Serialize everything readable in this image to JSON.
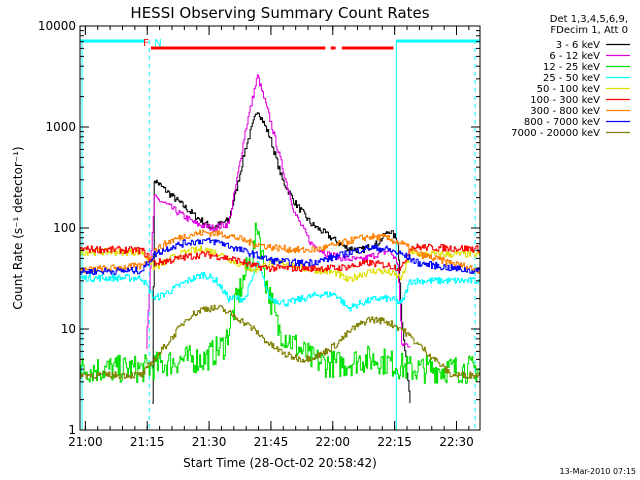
{
  "chart_data": {
    "type": "line",
    "title": "HESSI Observing Summary Count Rates",
    "xlabel": "Start Time (28-Oct-02 20:58:42)",
    "ylabel": "Count Rate (s⁻¹ detector⁻¹)",
    "x_unit": "minutes after 20:58:42",
    "xlim": [
      0,
      97
    ],
    "ylim": [
      1,
      10000
    ],
    "yscale": "log",
    "grid": false,
    "legend_position": "top-right outside",
    "x_ticks": [
      {
        "t": 1.3,
        "label": "21:00"
      },
      {
        "t": 16.3,
        "label": "21:15"
      },
      {
        "t": 31.3,
        "label": "21:30"
      },
      {
        "t": 46.3,
        "label": "21:45"
      },
      {
        "t": 61.3,
        "label": "22:00"
      },
      {
        "t": 76.3,
        "label": "22:15"
      },
      {
        "t": 91.3,
        "label": "22:30"
      }
    ],
    "y_ticks": [
      {
        "v": 1,
        "label": "1"
      },
      {
        "v": 10,
        "label": "10"
      },
      {
        "v": 100,
        "label": "100"
      },
      {
        "v": 1000,
        "label": "1000"
      },
      {
        "v": 10000,
        "label": "10000"
      }
    ],
    "legend_header": [
      "Det 1,3,4,5,6,9,",
      "FDecim 1, Att 0"
    ],
    "series": [
      {
        "name": "3 - 6 keV",
        "color": "#000000",
        "points": [
          [
            17.5,
            2
          ],
          [
            18,
            300
          ],
          [
            20,
            250
          ],
          [
            24,
            180
          ],
          [
            28,
            130
          ],
          [
            32,
            100
          ],
          [
            36,
            120
          ],
          [
            38,
            250
          ],
          [
            40,
            600
          ],
          [
            43,
            1500
          ],
          [
            46,
            800
          ],
          [
            49,
            300
          ],
          [
            52,
            180
          ],
          [
            56,
            110
          ],
          [
            60,
            85
          ],
          [
            64,
            65
          ],
          [
            68,
            60
          ],
          [
            72,
            70
          ],
          [
            75,
            95
          ],
          [
            77,
            75
          ],
          [
            78,
            12
          ],
          [
            80,
            2
          ]
        ]
      },
      {
        "name": "6 - 12 keV",
        "color": "#e000e0",
        "points": [
          [
            16,
            7
          ],
          [
            18,
            200
          ],
          [
            20,
            180
          ],
          [
            24,
            140
          ],
          [
            28,
            110
          ],
          [
            32,
            100
          ],
          [
            36,
            110
          ],
          [
            38,
            300
          ],
          [
            40,
            900
          ],
          [
            43,
            3200
          ],
          [
            46,
            1200
          ],
          [
            49,
            400
          ],
          [
            52,
            140
          ],
          [
            56,
            70
          ],
          [
            60,
            55
          ],
          [
            64,
            50
          ],
          [
            68,
            48
          ],
          [
            72,
            55
          ],
          [
            75,
            60
          ],
          [
            77,
            45
          ],
          [
            78,
            7
          ],
          [
            80,
            7
          ]
        ]
      },
      {
        "name": "12 - 25 keV",
        "color": "#00e000",
        "points": [
          [
            0,
            4
          ],
          [
            15,
            4
          ],
          [
            20,
            4.5
          ],
          [
            25,
            5
          ],
          [
            30,
            5
          ],
          [
            35,
            7
          ],
          [
            38,
            20
          ],
          [
            42,
            60
          ],
          [
            43,
            110
          ],
          [
            45,
            30
          ],
          [
            48,
            10
          ],
          [
            52,
            7
          ],
          [
            56,
            5
          ],
          [
            60,
            4.5
          ],
          [
            64,
            4.5
          ],
          [
            68,
            5
          ],
          [
            72,
            5
          ],
          [
            76,
            4.5
          ],
          [
            80,
            4
          ],
          [
            97,
            4
          ]
        ]
      },
      {
        "name": "25 - 50 keV",
        "color": "#00ffff",
        "points": [
          [
            0,
            32
          ],
          [
            15,
            32
          ],
          [
            18,
            20
          ],
          [
            22,
            24
          ],
          [
            26,
            30
          ],
          [
            30,
            35
          ],
          [
            33,
            30
          ],
          [
            36,
            20
          ],
          [
            40,
            20
          ],
          [
            43,
            45
          ],
          [
            46,
            20
          ],
          [
            50,
            18
          ],
          [
            54,
            20
          ],
          [
            58,
            22
          ],
          [
            62,
            22
          ],
          [
            65,
            16
          ],
          [
            68,
            18
          ],
          [
            72,
            20
          ],
          [
            75,
            20
          ],
          [
            78,
            18
          ],
          [
            80,
            30
          ],
          [
            97,
            30
          ]
        ]
      },
      {
        "name": "50 - 100 keV",
        "color": "#e0e000",
        "points": [
          [
            0,
            58
          ],
          [
            15,
            58
          ],
          [
            18,
            40
          ],
          [
            22,
            50
          ],
          [
            26,
            58
          ],
          [
            30,
            62
          ],
          [
            34,
            55
          ],
          [
            38,
            45
          ],
          [
            42,
            38
          ],
          [
            46,
            45
          ],
          [
            50,
            45
          ],
          [
            54,
            40
          ],
          [
            58,
            38
          ],
          [
            62,
            36
          ],
          [
            65,
            30
          ],
          [
            68,
            35
          ],
          [
            72,
            38
          ],
          [
            75,
            36
          ],
          [
            78,
            32
          ],
          [
            80,
            55
          ],
          [
            97,
            55
          ]
        ]
      },
      {
        "name": "100 - 300 keV",
        "color": "#ff0000",
        "points": [
          [
            0,
            62
          ],
          [
            15,
            60
          ],
          [
            18,
            45
          ],
          [
            22,
            48
          ],
          [
            26,
            52
          ],
          [
            30,
            55
          ],
          [
            34,
            52
          ],
          [
            38,
            48
          ],
          [
            42,
            42
          ],
          [
            46,
            40
          ],
          [
            50,
            40
          ],
          [
            54,
            40
          ],
          [
            58,
            40
          ],
          [
            62,
            40
          ],
          [
            66,
            42
          ],
          [
            70,
            45
          ],
          [
            74,
            43
          ],
          [
            78,
            40
          ],
          [
            80,
            65
          ],
          [
            97,
            62
          ]
        ]
      },
      {
        "name": "300 - 800 keV",
        "color": "#ff8000",
        "points": [
          [
            0,
            38
          ],
          [
            15,
            42
          ],
          [
            18,
            60
          ],
          [
            22,
            75
          ],
          [
            26,
            85
          ],
          [
            30,
            90
          ],
          [
            34,
            88
          ],
          [
            38,
            80
          ],
          [
            42,
            70
          ],
          [
            46,
            65
          ],
          [
            50,
            62
          ],
          [
            54,
            60
          ],
          [
            58,
            62
          ],
          [
            62,
            68
          ],
          [
            66,
            76
          ],
          [
            70,
            82
          ],
          [
            74,
            80
          ],
          [
            78,
            70
          ],
          [
            82,
            55
          ],
          [
            90,
            45
          ],
          [
            97,
            38
          ]
        ]
      },
      {
        "name": "800 - 7000 keV",
        "color": "#0000ff",
        "points": [
          [
            0,
            37
          ],
          [
            15,
            38
          ],
          [
            18,
            55
          ],
          [
            22,
            65
          ],
          [
            26,
            72
          ],
          [
            30,
            75
          ],
          [
            34,
            72
          ],
          [
            38,
            62
          ],
          [
            42,
            55
          ],
          [
            46,
            48
          ],
          [
            50,
            46
          ],
          [
            54,
            45
          ],
          [
            58,
            47
          ],
          [
            62,
            52
          ],
          [
            66,
            58
          ],
          [
            70,
            64
          ],
          [
            74,
            62
          ],
          [
            78,
            55
          ],
          [
            82,
            45
          ],
          [
            90,
            40
          ],
          [
            97,
            37
          ]
        ]
      },
      {
        "name": "7000 - 20000 keV",
        "color": "#808000",
        "points": [
          [
            0,
            3.5
          ],
          [
            15,
            3.5
          ],
          [
            18,
            5
          ],
          [
            22,
            8
          ],
          [
            26,
            13
          ],
          [
            30,
            16
          ],
          [
            34,
            16
          ],
          [
            38,
            13
          ],
          [
            42,
            10
          ],
          [
            46,
            7
          ],
          [
            50,
            5.5
          ],
          [
            54,
            5
          ],
          [
            58,
            5.5
          ],
          [
            62,
            7
          ],
          [
            66,
            10
          ],
          [
            70,
            12.5
          ],
          [
            74,
            12
          ],
          [
            78,
            10
          ],
          [
            82,
            7
          ],
          [
            86,
            5
          ],
          [
            90,
            3.5
          ],
          [
            97,
            3.5
          ]
        ]
      }
    ],
    "flag_labels": [
      {
        "text": "F",
        "color": "#ff0000",
        "t": 15.3
      },
      {
        "text": "N",
        "color": "#00ffff",
        "t": 18.0
      }
    ],
    "flags": {
      "cyan_segments": [
        [
          0,
          15.5
        ],
        [
          76.7,
          97
        ]
      ],
      "red_segments": [
        [
          17.2,
          59.5
        ],
        [
          60.8,
          62
        ],
        [
          63.5,
          76
        ]
      ],
      "cyan_vlines": [
        0.5,
        76.7
      ],
      "cyan_dashed_vlines": [
        16.8,
        95.8
      ]
    },
    "footer": "13-Mar-2010 07:15"
  }
}
